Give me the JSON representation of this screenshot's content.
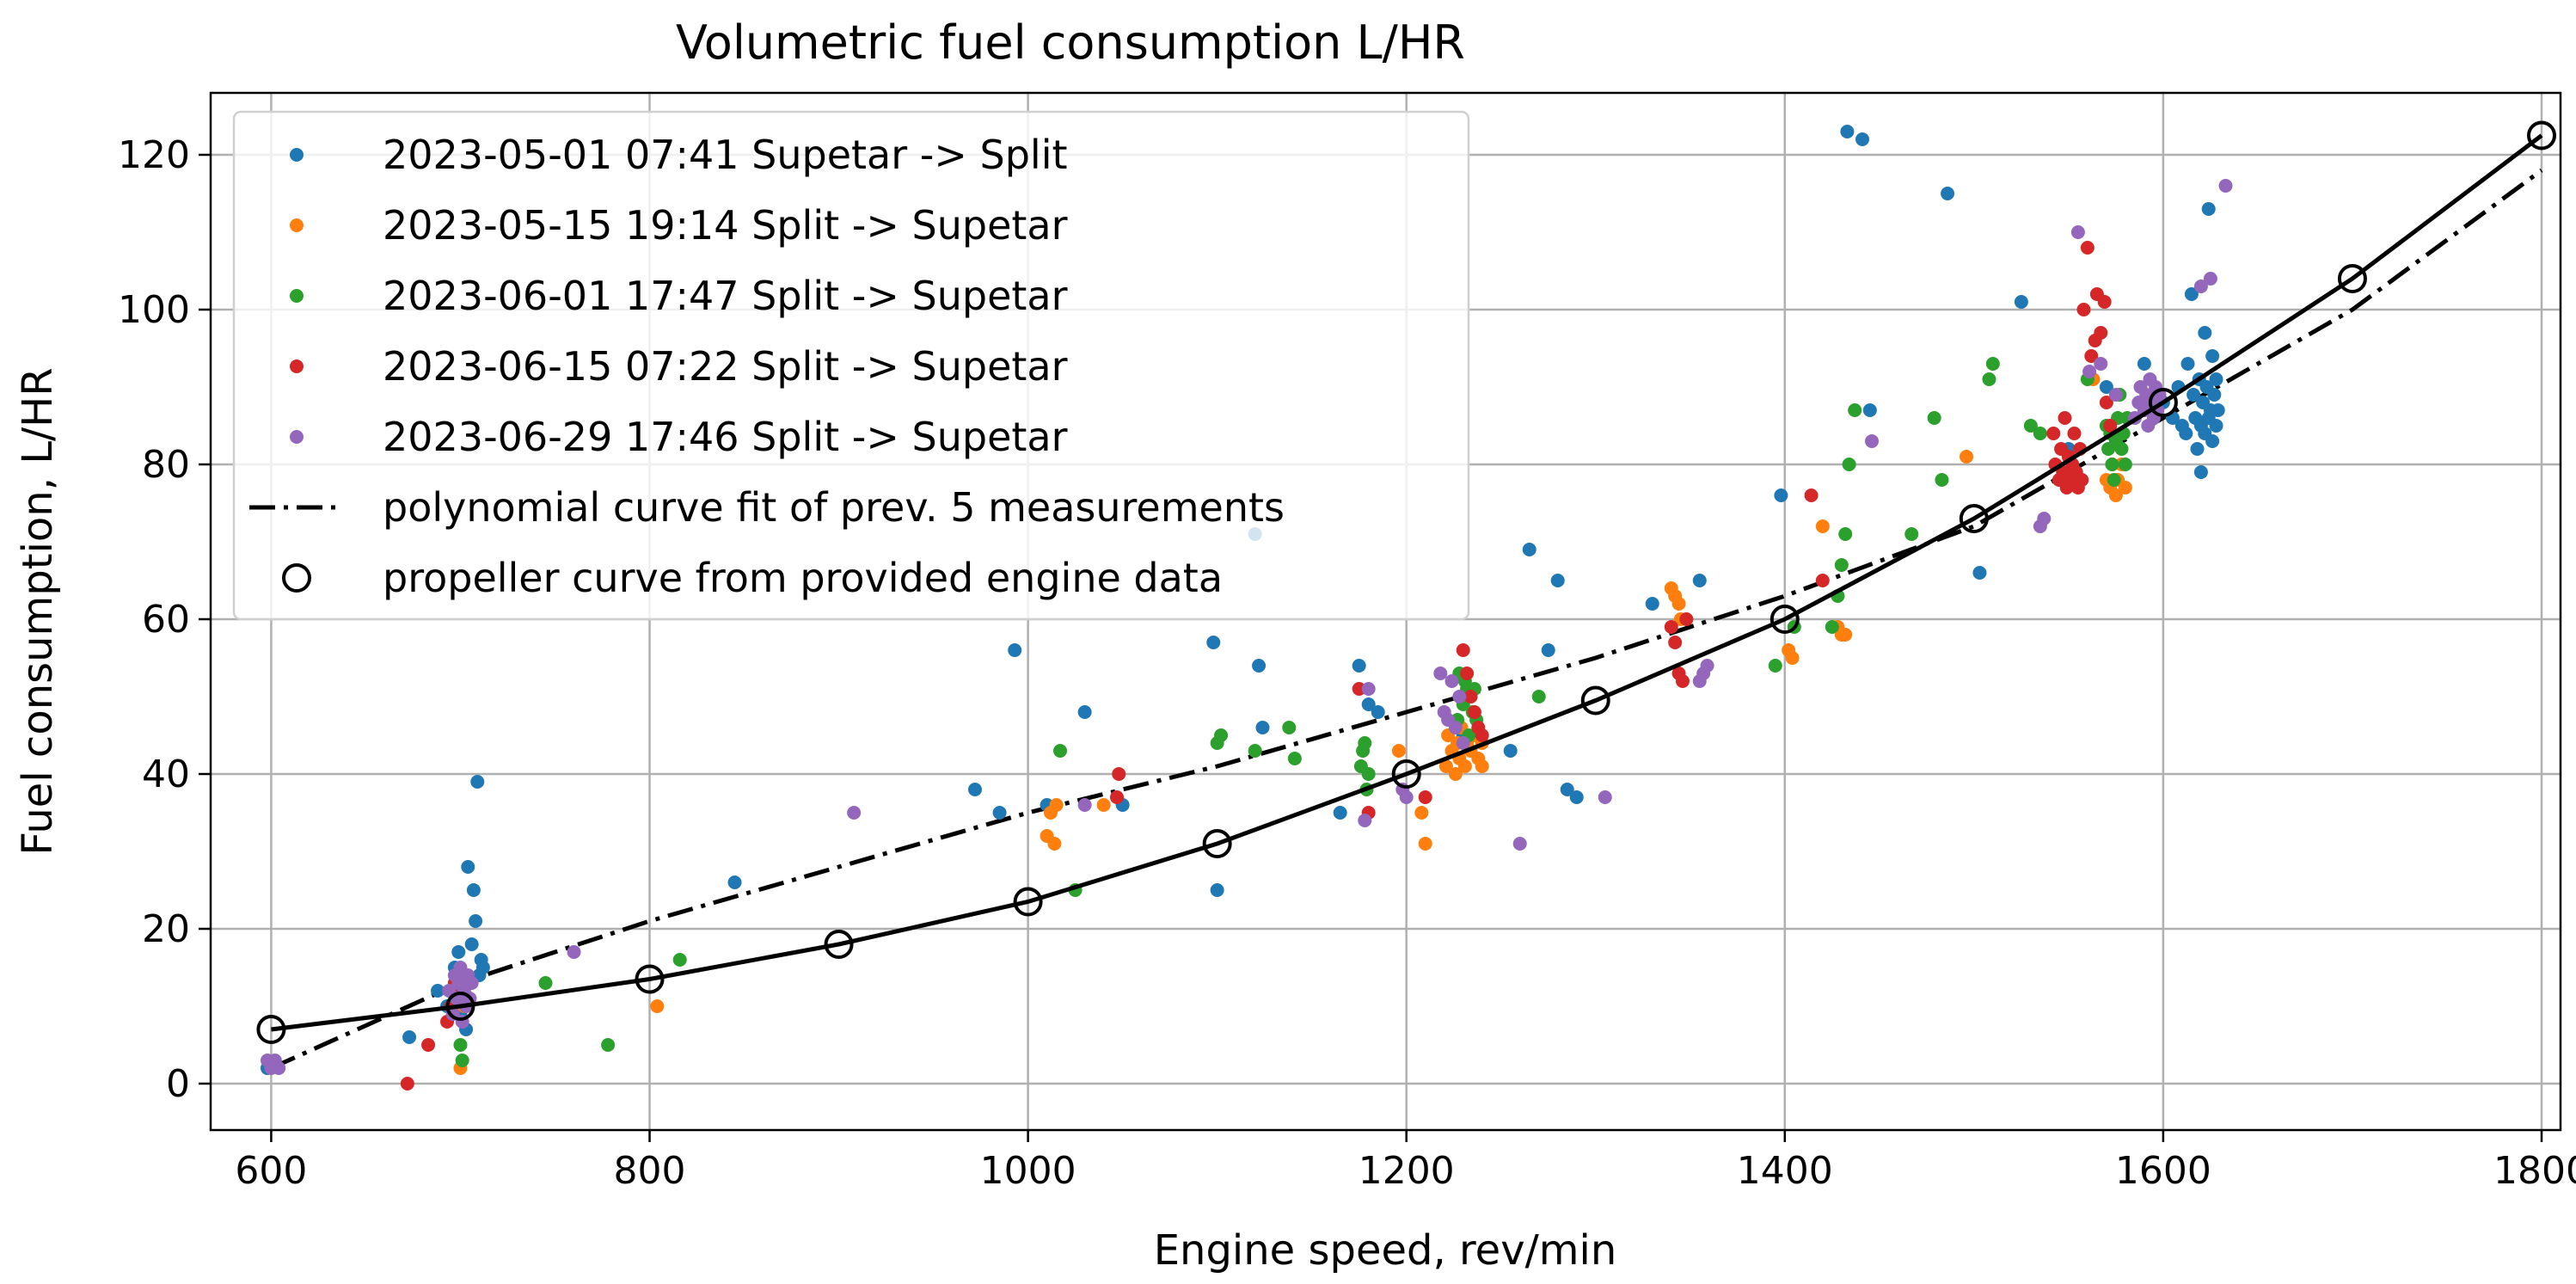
{
  "chart_data": {
    "type": "scatter",
    "title": "Volumetric fuel consumption L/HR",
    "xlabel": "Engine speed, rev/min",
    "ylabel": "Fuel consumption, L/HR",
    "xlim": [
      568,
      1810
    ],
    "ylim": [
      -6,
      128
    ],
    "xticks": [
      600,
      800,
      1000,
      1200,
      1400,
      1600,
      1800
    ],
    "yticks": [
      0,
      20,
      40,
      60,
      80,
      100,
      120
    ],
    "grid": true,
    "legend_position": "top-left",
    "series": [
      {
        "name": "2023-05-01  07:41 Supetar -> Split",
        "color": "#1f77b4",
        "points": [
          [
            598,
            2
          ],
          [
            688,
            12
          ],
          [
            693,
            10
          ],
          [
            697,
            15
          ],
          [
            699,
            17
          ],
          [
            700,
            9
          ],
          [
            702,
            11
          ],
          [
            703,
            7
          ],
          [
            704,
            28
          ],
          [
            705,
            13
          ],
          [
            706,
            18
          ],
          [
            707,
            25
          ],
          [
            708,
            21
          ],
          [
            709,
            39
          ],
          [
            710,
            14
          ],
          [
            711,
            16
          ],
          [
            712,
            15
          ],
          [
            673,
            6
          ],
          [
            845,
            26
          ],
          [
            972,
            38
          ],
          [
            985,
            35
          ],
          [
            993,
            56
          ],
          [
            1010,
            36
          ],
          [
            1030,
            48
          ],
          [
            1050,
            36
          ],
          [
            1098,
            57
          ],
          [
            1100,
            25
          ],
          [
            1120,
            71
          ],
          [
            1122,
            54
          ],
          [
            1124,
            46
          ],
          [
            1165,
            35
          ],
          [
            1175,
            54
          ],
          [
            1180,
            49
          ],
          [
            1185,
            48
          ],
          [
            1230,
            45
          ],
          [
            1255,
            43
          ],
          [
            1265,
            69
          ],
          [
            1275,
            56
          ],
          [
            1280,
            65
          ],
          [
            1285,
            38
          ],
          [
            1290,
            37
          ],
          [
            1330,
            62
          ],
          [
            1355,
            65
          ],
          [
            1398,
            76
          ],
          [
            1433,
            123
          ],
          [
            1441,
            122
          ],
          [
            1445,
            87
          ],
          [
            1486,
            115
          ],
          [
            1503,
            66
          ],
          [
            1525,
            101
          ],
          [
            1550,
            82
          ],
          [
            1570,
            90
          ],
          [
            1590,
            93
          ],
          [
            1600,
            88
          ],
          [
            1605,
            86
          ],
          [
            1608,
            90
          ],
          [
            1610,
            85
          ],
          [
            1612,
            84
          ],
          [
            1613,
            93
          ],
          [
            1615,
            102
          ],
          [
            1616,
            89
          ],
          [
            1617,
            86
          ],
          [
            1618,
            82
          ],
          [
            1619,
            91
          ],
          [
            1620,
            85
          ],
          [
            1620,
            79
          ],
          [
            1621,
            88
          ],
          [
            1622,
            84
          ],
          [
            1622,
            97
          ],
          [
            1623,
            90
          ],
          [
            1624,
            86
          ],
          [
            1624,
            113
          ],
          [
            1625,
            87
          ],
          [
            1626,
            83
          ],
          [
            1626,
            94
          ],
          [
            1627,
            89
          ],
          [
            1628,
            85
          ],
          [
            1628,
            91
          ],
          [
            1629,
            87
          ]
        ]
      },
      {
        "name": "2023-05-15  19:14 Split -> Supetar",
        "color": "#ff7f0e",
        "points": [
          [
            700,
            2
          ],
          [
            702,
            10
          ],
          [
            804,
            10
          ],
          [
            1010,
            32
          ],
          [
            1012,
            35
          ],
          [
            1014,
            31
          ],
          [
            1015,
            36
          ],
          [
            1040,
            36
          ],
          [
            1196,
            43
          ],
          [
            1208,
            35
          ],
          [
            1210,
            31
          ],
          [
            1221,
            41
          ],
          [
            1222,
            45
          ],
          [
            1224,
            43
          ],
          [
            1226,
            40
          ],
          [
            1227,
            44
          ],
          [
            1228,
            42
          ],
          [
            1229,
            46
          ],
          [
            1231,
            41
          ],
          [
            1232,
            44
          ],
          [
            1234,
            43
          ],
          [
            1236,
            45
          ],
          [
            1238,
            42
          ],
          [
            1240,
            44
          ],
          [
            1240,
            41
          ],
          [
            1340,
            64
          ],
          [
            1342,
            63
          ],
          [
            1344,
            62
          ],
          [
            1345,
            60
          ],
          [
            1402,
            56
          ],
          [
            1404,
            55
          ],
          [
            1420,
            72
          ],
          [
            1428,
            59
          ],
          [
            1430,
            58
          ],
          [
            1432,
            58
          ],
          [
            1496,
            81
          ],
          [
            1563,
            91
          ],
          [
            1570,
            78
          ],
          [
            1572,
            77
          ],
          [
            1573,
            80
          ],
          [
            1575,
            76
          ],
          [
            1576,
            78
          ],
          [
            1578,
            80
          ],
          [
            1580,
            77
          ]
        ]
      },
      {
        "name": "2023-06-01  17:47 Split -> Supetar",
        "color": "#2ca02c",
        "points": [
          [
            700,
            5
          ],
          [
            701,
            3
          ],
          [
            745,
            13
          ],
          [
            778,
            5
          ],
          [
            816,
            16
          ],
          [
            1017,
            43
          ],
          [
            1025,
            25
          ],
          [
            1100,
            44
          ],
          [
            1102,
            45
          ],
          [
            1120,
            43
          ],
          [
            1138,
            46
          ],
          [
            1141,
            42
          ],
          [
            1176,
            41
          ],
          [
            1177,
            43
          ],
          [
            1178,
            44
          ],
          [
            1179,
            38
          ],
          [
            1180,
            40
          ],
          [
            1227,
            47
          ],
          [
            1228,
            53
          ],
          [
            1229,
            50
          ],
          [
            1230,
            49
          ],
          [
            1231,
            52
          ],
          [
            1232,
            51
          ],
          [
            1233,
            45
          ],
          [
            1234,
            50
          ],
          [
            1235,
            48
          ],
          [
            1236,
            51
          ],
          [
            1237,
            47
          ],
          [
            1270,
            50
          ],
          [
            1395,
            54
          ],
          [
            1405,
            59
          ],
          [
            1425,
            59
          ],
          [
            1428,
            63
          ],
          [
            1430,
            67
          ],
          [
            1432,
            71
          ],
          [
            1434,
            80
          ],
          [
            1437,
            87
          ],
          [
            1467,
            71
          ],
          [
            1479,
            86
          ],
          [
            1483,
            78
          ],
          [
            1508,
            91
          ],
          [
            1510,
            93
          ],
          [
            1530,
            85
          ],
          [
            1535,
            84
          ],
          [
            1560,
            91
          ],
          [
            1570,
            85
          ],
          [
            1571,
            82
          ],
          [
            1572,
            84
          ],
          [
            1573,
            80
          ],
          [
            1574,
            78
          ],
          [
            1575,
            83
          ],
          [
            1576,
            86
          ],
          [
            1577,
            89
          ],
          [
            1578,
            82
          ],
          [
            1579,
            84
          ],
          [
            1580,
            80
          ],
          [
            1581,
            86
          ]
        ]
      },
      {
        "name": "2023-06-15  07:22 Split -> Supetar",
        "color": "#d62728",
        "points": [
          [
            672,
            0
          ],
          [
            683,
            5
          ],
          [
            693,
            8
          ],
          [
            695,
            10
          ],
          [
            697,
            13
          ],
          [
            699,
            11
          ],
          [
            701,
            12
          ],
          [
            703,
            10
          ],
          [
            1047,
            37
          ],
          [
            1048,
            40
          ],
          [
            1175,
            51
          ],
          [
            1180,
            35
          ],
          [
            1210,
            37
          ],
          [
            1230,
            56
          ],
          [
            1232,
            53
          ],
          [
            1234,
            50
          ],
          [
            1236,
            48
          ],
          [
            1238,
            46
          ],
          [
            1240,
            45
          ],
          [
            1340,
            59
          ],
          [
            1342,
            57
          ],
          [
            1344,
            53
          ],
          [
            1346,
            52
          ],
          [
            1348,
            60
          ],
          [
            1414,
            76
          ],
          [
            1420,
            65
          ],
          [
            1542,
            84
          ],
          [
            1543,
            80
          ],
          [
            1545,
            78
          ],
          [
            1546,
            82
          ],
          [
            1547,
            79
          ],
          [
            1548,
            86
          ],
          [
            1549,
            77
          ],
          [
            1550,
            81
          ],
          [
            1551,
            78
          ],
          [
            1552,
            80
          ],
          [
            1553,
            84
          ],
          [
            1554,
            79
          ],
          [
            1555,
            77
          ],
          [
            1556,
            82
          ],
          [
            1557,
            78
          ],
          [
            1558,
            100
          ],
          [
            1560,
            108
          ],
          [
            1562,
            94
          ],
          [
            1564,
            96
          ],
          [
            1565,
            102
          ],
          [
            1567,
            97
          ],
          [
            1569,
            101
          ],
          [
            1570,
            88
          ],
          [
            1572,
            85
          ]
        ]
      },
      {
        "name": "2023-06-29  17:46 Split -> Supetar",
        "color": "#9467bd",
        "points": [
          [
            598,
            3
          ],
          [
            600,
            2
          ],
          [
            602,
            3
          ],
          [
            604,
            2
          ],
          [
            694,
            12
          ],
          [
            696,
            9
          ],
          [
            697,
            14
          ],
          [
            698,
            11
          ],
          [
            699,
            13
          ],
          [
            700,
            15
          ],
          [
            701,
            8
          ],
          [
            702,
            12
          ],
          [
            703,
            10
          ],
          [
            704,
            14
          ],
          [
            705,
            11
          ],
          [
            706,
            13
          ],
          [
            760,
            17
          ],
          [
            908,
            35
          ],
          [
            1030,
            36
          ],
          [
            1178,
            34
          ],
          [
            1180,
            51
          ],
          [
            1198,
            38
          ],
          [
            1200,
            37
          ],
          [
            1218,
            53
          ],
          [
            1220,
            48
          ],
          [
            1222,
            47
          ],
          [
            1224,
            52
          ],
          [
            1226,
            46
          ],
          [
            1228,
            50
          ],
          [
            1230,
            44
          ],
          [
            1260,
            31
          ],
          [
            1305,
            37
          ],
          [
            1355,
            52
          ],
          [
            1357,
            53
          ],
          [
            1359,
            54
          ],
          [
            1446,
            83
          ],
          [
            1535,
            72
          ],
          [
            1537,
            73
          ],
          [
            1555,
            110
          ],
          [
            1561,
            92
          ],
          [
            1567,
            93
          ],
          [
            1575,
            89
          ],
          [
            1585,
            86
          ],
          [
            1587,
            88
          ],
          [
            1588,
            90
          ],
          [
            1590,
            87
          ],
          [
            1591,
            89
          ],
          [
            1592,
            85
          ],
          [
            1593,
            91
          ],
          [
            1594,
            88
          ],
          [
            1595,
            86
          ],
          [
            1596,
            90
          ],
          [
            1597,
            87
          ],
          [
            1598,
            89
          ],
          [
            1620,
            103
          ],
          [
            1625,
            104
          ],
          [
            1633,
            116
          ]
        ]
      }
    ],
    "fit_curve": {
      "name": "polynomial curve fit of prev. 5 measurements",
      "style": "dash-dot",
      "color": "#000000",
      "points": [
        [
          600,
          2
        ],
        [
          700,
          13
        ],
        [
          800,
          21
        ],
        [
          900,
          28
        ],
        [
          1000,
          35
        ],
        [
          1100,
          41
        ],
        [
          1200,
          48
        ],
        [
          1300,
          55
        ],
        [
          1400,
          63
        ],
        [
          1500,
          72
        ],
        [
          1600,
          86
        ],
        [
          1700,
          100
        ],
        [
          1800,
          118
        ]
      ]
    },
    "propeller_curve": {
      "name": "propeller curve from provided engine data",
      "style": "solid-with-open-circles",
      "color": "#000000",
      "points": [
        [
          600,
          7
        ],
        [
          700,
          10
        ],
        [
          800,
          13.5
        ],
        [
          900,
          18
        ],
        [
          1000,
          23.5
        ],
        [
          1100,
          31
        ],
        [
          1200,
          40
        ],
        [
          1300,
          49.5
        ],
        [
          1400,
          60
        ],
        [
          1500,
          73
        ],
        [
          1600,
          88
        ],
        [
          1700,
          104
        ],
        [
          1800,
          122.5
        ]
      ]
    }
  }
}
